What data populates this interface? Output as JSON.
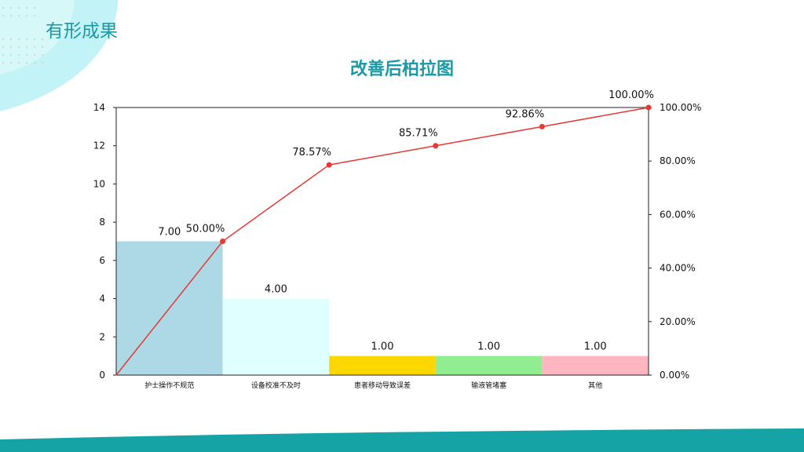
{
  "header": {
    "section_title": "有形成果"
  },
  "chart_data": {
    "type": "bar",
    "title": "改善后柏拉图",
    "categories": [
      "护士操作不规范",
      "设备校准不及时",
      "患者移动导致误差",
      "输液管堵塞",
      "其他"
    ],
    "values": [
      7,
      4,
      1,
      1,
      1
    ],
    "bar_labels": [
      "7.00",
      "4.00",
      "1.00",
      "1.00",
      "1.00"
    ],
    "bar_colors": [
      "#add8e6",
      "#e0ffff",
      "#ffd700",
      "#90ee90",
      "#ffb6c1"
    ],
    "cumulative_percent": [
      0,
      50.0,
      78.57,
      85.71,
      92.86,
      100.0
    ],
    "cumulative_labels": [
      "50.00%",
      "78.57%",
      "85.71%",
      "92.86%",
      "100.00%"
    ],
    "cumulative_label_colors": [
      "#222222",
      "#e53935",
      "#222222",
      "#222222",
      "#222222"
    ],
    "line_color": "#e53935",
    "ylim": [
      0,
      14
    ],
    "yticks": [
      "0",
      "2",
      "4",
      "6",
      "8",
      "10",
      "12",
      "14"
    ],
    "y2lim": [
      0,
      100
    ],
    "y2ticks": [
      "0.00%",
      "20.00%",
      "40.00%",
      "60.00%",
      "80.00%",
      "100.00%"
    ],
    "grid": false,
    "legend": "none"
  },
  "colors": {
    "accent": "#1a9aa5",
    "deco_light": "#bff3f5",
    "band": "#15a3a6"
  }
}
